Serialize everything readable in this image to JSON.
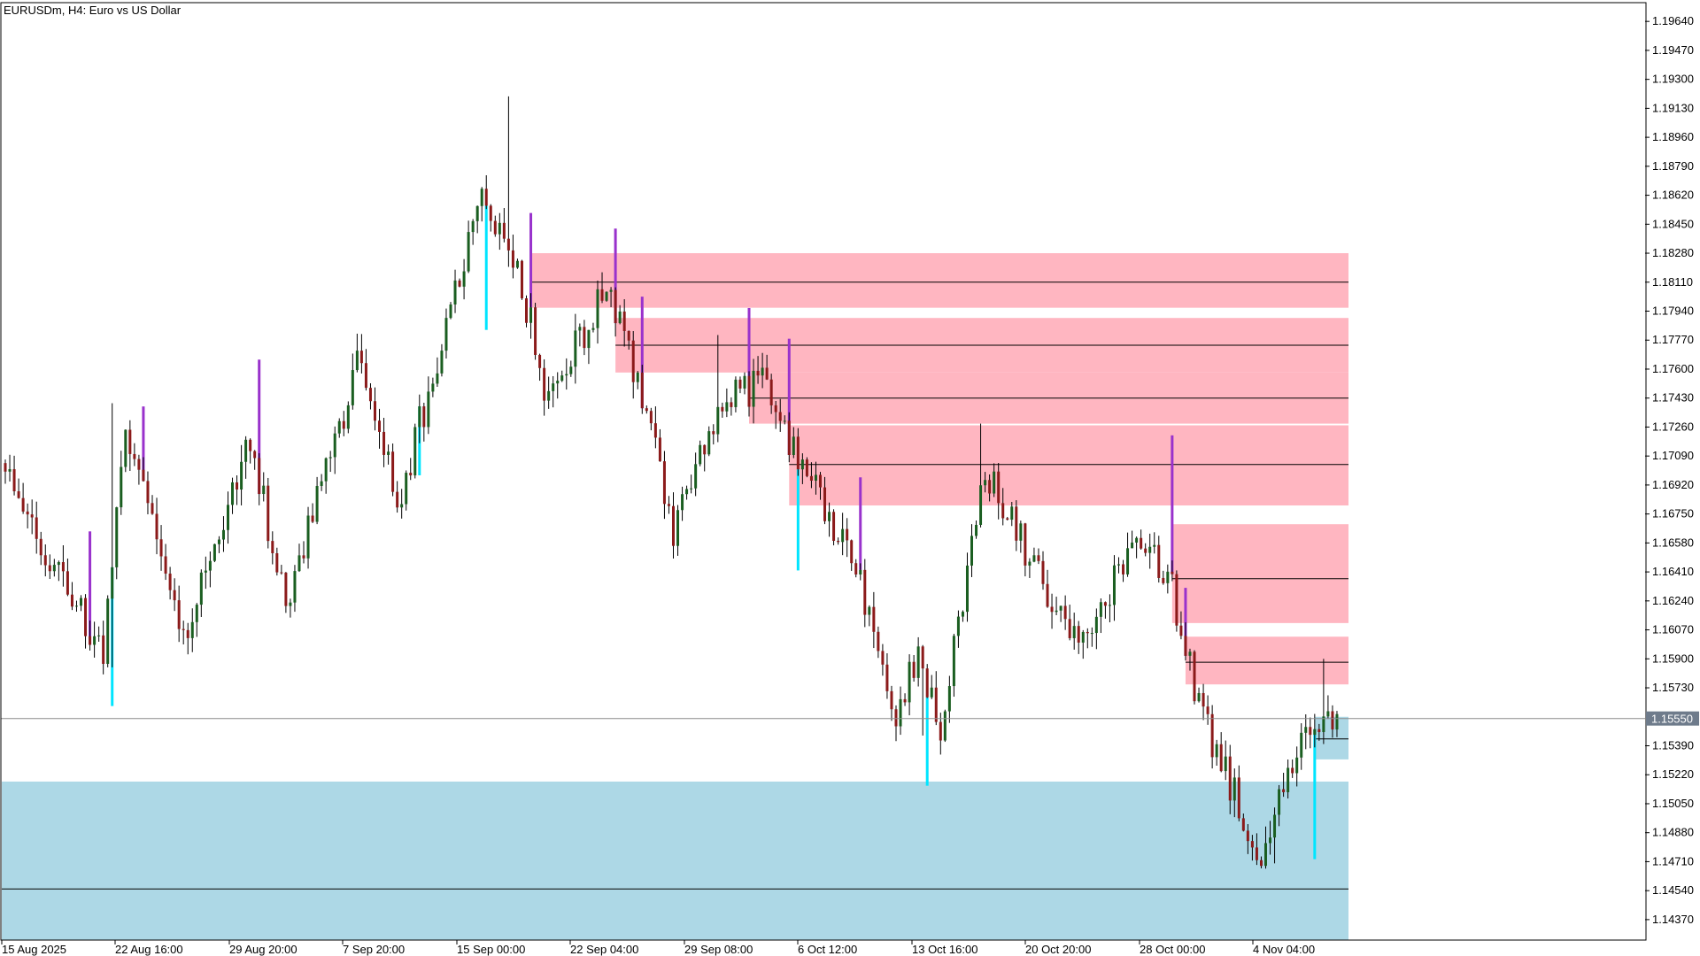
{
  "window": {
    "title": "EURUSDm, H4:  Euro vs US Dollar"
  },
  "colors": {
    "background": "#ffffff",
    "bull_candle": "#1a5e20",
    "bear_candle": "#8b1a1a",
    "wick": "#000000",
    "supply_zone": "#ffb6c1",
    "demand_zone": "#add8e6",
    "zone_line": "#000000",
    "highlight_cyan": "#00e5ff",
    "highlight_purple": "#9932cc",
    "current_price_line": "#8c8c8c",
    "current_price_tag": "#6e7b8b"
  },
  "chart_data": {
    "type": "candlestick",
    "symbol": "EURUSDm",
    "timeframe": "H4",
    "ylim": [
      1.1425,
      1.1975
    ],
    "y_ticks": [
      "1.19640",
      "1.19470",
      "1.19300",
      "1.19130",
      "1.18960",
      "1.18790",
      "1.18620",
      "1.18450",
      "1.18280",
      "1.18110",
      "1.17940",
      "1.17770",
      "1.17600",
      "1.17430",
      "1.17260",
      "1.17090",
      "1.16920",
      "1.16750",
      "1.16580",
      "1.16410",
      "1.16240",
      "1.16070",
      "1.15900",
      "1.15730",
      "1.15390",
      "1.15220",
      "1.15050",
      "1.14880",
      "1.14710",
      "1.14540",
      "1.14370"
    ],
    "x_ticks": [
      "15 Aug 2025",
      "22 Aug 16:00",
      "29 Aug 20:00",
      "7 Sep 20:00",
      "15 Sep 00:00",
      "22 Sep 04:00",
      "29 Sep 08:00",
      "6 Oct 12:00",
      "13 Oct 16:00",
      "20 Oct 20:00",
      "28 Oct 00:00",
      "4 Nov 04:00"
    ],
    "current_price": "1.15550",
    "candle_count": 300,
    "waypoints": [
      {
        "i": 0,
        "p": 1.17
      },
      {
        "i": 12,
        "p": 1.164
      },
      {
        "i": 22,
        "p": 1.159
      },
      {
        "i": 27,
        "p": 1.173
      },
      {
        "i": 40,
        "p": 1.16
      },
      {
        "i": 55,
        "p": 1.172
      },
      {
        "i": 63,
        "p": 1.162
      },
      {
        "i": 80,
        "p": 1.177
      },
      {
        "i": 88,
        "p": 1.168
      },
      {
        "i": 107,
        "p": 1.186
      },
      {
        "i": 115,
        "p": 1.182
      },
      {
        "i": 122,
        "p": 1.174
      },
      {
        "i": 135,
        "p": 1.181
      },
      {
        "i": 145,
        "p": 1.173
      },
      {
        "i": 150,
        "p": 1.166
      },
      {
        "i": 160,
        "p": 1.174
      },
      {
        "i": 170,
        "p": 1.175
      },
      {
        "i": 178,
        "p": 1.171
      },
      {
        "i": 190,
        "p": 1.165
      },
      {
        "i": 200,
        "p": 1.156
      },
      {
        "i": 205,
        "p": 1.159
      },
      {
        "i": 210,
        "p": 1.155
      },
      {
        "i": 220,
        "p": 1.17
      },
      {
        "i": 230,
        "p": 1.165
      },
      {
        "i": 240,
        "p": 1.16
      },
      {
        "i": 255,
        "p": 1.166
      },
      {
        "i": 262,
        "p": 1.163
      },
      {
        "i": 268,
        "p": 1.156
      },
      {
        "i": 282,
        "p": 1.1475
      },
      {
        "i": 292,
        "p": 1.1545
      },
      {
        "i": 299,
        "p": 1.1555
      }
    ],
    "spikes": [
      {
        "i": 24,
        "high": 1.174,
        "low": 1.1585
      },
      {
        "i": 113,
        "high": 1.192,
        "low": 1.182
      },
      {
        "i": 160,
        "high": 1.178
      },
      {
        "i": 219,
        "high": 1.1728
      },
      {
        "i": 206,
        "low": 1.1545
      },
      {
        "i": 285,
        "low": 1.147
      },
      {
        "i": 296,
        "high": 1.159
      }
    ],
    "marked_candles": [
      {
        "i": 19,
        "kind": "purple"
      },
      {
        "i": 24,
        "kind": "cyan"
      },
      {
        "i": 31,
        "kind": "purple"
      },
      {
        "i": 57,
        "kind": "purple"
      },
      {
        "i": 93,
        "kind": "cyan"
      },
      {
        "i": 108,
        "kind": "cyan"
      },
      {
        "i": 118,
        "kind": "purple"
      },
      {
        "i": 137,
        "kind": "purple"
      },
      {
        "i": 143,
        "kind": "purple"
      },
      {
        "i": 167,
        "kind": "purple"
      },
      {
        "i": 176,
        "kind": "purple"
      },
      {
        "i": 178,
        "kind": "cyan"
      },
      {
        "i": 192,
        "kind": "purple"
      },
      {
        "i": 207,
        "kind": "cyan"
      },
      {
        "i": 262,
        "kind": "purple"
      },
      {
        "i": 265,
        "kind": "purple"
      },
      {
        "i": 294,
        "kind": "cyan"
      }
    ],
    "zones": [
      {
        "kind": "supply",
        "start": 118,
        "top": 1.1828,
        "bottom": 1.1796,
        "mid": 1.1811
      },
      {
        "kind": "supply",
        "start": 137,
        "top": 1.179,
        "bottom": 1.1758,
        "mid": 1.1774
      },
      {
        "kind": "supply",
        "start": 167,
        "top": 1.1758,
        "bottom": 1.1728,
        "mid": 1.1743
      },
      {
        "kind": "supply",
        "start": 176,
        "top": 1.1727,
        "bottom": 1.168,
        "mid": 1.1704
      },
      {
        "kind": "supply",
        "start": 262,
        "top": 1.1669,
        "bottom": 1.1611,
        "mid": 1.1637
      },
      {
        "kind": "supply",
        "start": 265,
        "top": 1.1603,
        "bottom": 1.1575,
        "mid": 1.1588
      },
      {
        "kind": "demand",
        "start": 294,
        "top": 1.1556,
        "bottom": 1.1531,
        "mid": 1.1543
      },
      {
        "kind": "demand",
        "start": 0,
        "top": 1.1518,
        "bottom": 1.1425,
        "mid": 1.1455
      }
    ]
  }
}
